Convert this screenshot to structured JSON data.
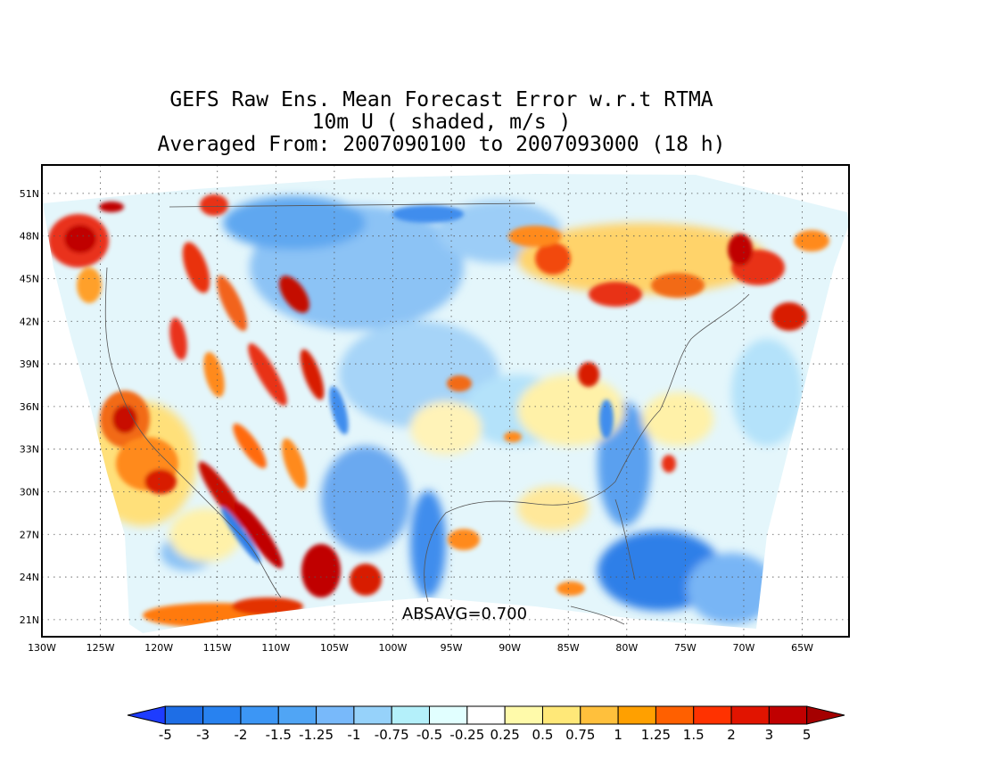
{
  "title_lines": [
    "GEFS Raw Ens. Mean Forecast Error w.r.t RTMA",
    "10m U ( shaded, m/s )",
    "Averaged From: 2007090100 to 2007093000 (18 h)"
  ],
  "map": {
    "lat_range": [
      19.8,
      53
    ],
    "lon_range": [
      -130,
      -61
    ],
    "lat_labels": [
      "51N",
      "48N",
      "45N",
      "42N",
      "39N",
      "36N",
      "33N",
      "30N",
      "27N",
      "24N",
      "21N"
    ],
    "lat_values": [
      51,
      48,
      45,
      42,
      39,
      36,
      33,
      30,
      27,
      24,
      21
    ],
    "lon_labels": [
      "130W",
      "125W",
      "120W",
      "115W",
      "110W",
      "105W",
      "100W",
      "95W",
      "90W",
      "85W",
      "80W",
      "75W",
      "70W",
      "65W"
    ],
    "lon_values": [
      -130,
      -125,
      -120,
      -115,
      -110,
      -105,
      -100,
      -95,
      -90,
      -85,
      -80,
      -75,
      -70,
      -65
    ],
    "grid": "dotted",
    "annotation": "ABSAVG=0.700"
  },
  "colorbar": {
    "labels": [
      "-5",
      "-3",
      "-2",
      "-1.5",
      "-1.25",
      "-1",
      "-0.75",
      "-0.5",
      "-0.25",
      "0.25",
      "0.5",
      "0.75",
      "1",
      "1.25",
      "1.5",
      "2",
      "3",
      "5"
    ],
    "colors": [
      "#1e3cff",
      "#1e6ee6",
      "#2882f0",
      "#3c96f5",
      "#50a5f5",
      "#78b9fa",
      "#96d2fa",
      "#b4f0fa",
      "#e1ffff",
      "#ffffff",
      "#fffaaa",
      "#ffe878",
      "#ffc03c",
      "#ffa000",
      "#ff6000",
      "#ff3200",
      "#e11400",
      "#c00000",
      "#a50000"
    ]
  }
}
